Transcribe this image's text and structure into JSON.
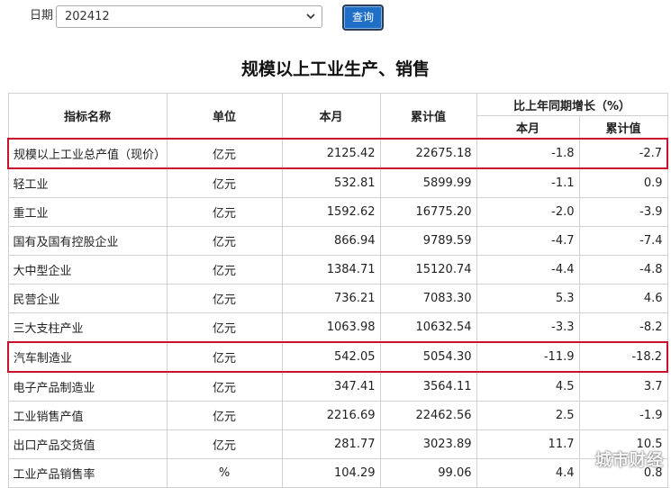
{
  "filter": {
    "date_label": "日期",
    "date_value": "202412",
    "query_button": "查询"
  },
  "title": "规模以上工业生产、销售",
  "table": {
    "headers": {
      "indicator": "指标名称",
      "unit": "单位",
      "month": "本月",
      "cumulative": "累计值",
      "yoy_group": "比上年同期增长（%）",
      "yoy_month": "本月",
      "yoy_cumulative": "累计值"
    },
    "rows": [
      {
        "name": "规模以上工业总产值（现价）",
        "unit": "亿元",
        "month": "2125.42",
        "cumulative": "22675.18",
        "yoy_month": "-1.8",
        "yoy_cumulative": "-2.7"
      },
      {
        "name": "轻工业",
        "unit": "亿元",
        "month": "532.81",
        "cumulative": "5899.99",
        "yoy_month": "-1.1",
        "yoy_cumulative": "0.9"
      },
      {
        "name": "重工业",
        "unit": "亿元",
        "month": "1592.62",
        "cumulative": "16775.20",
        "yoy_month": "-2.0",
        "yoy_cumulative": "-3.9"
      },
      {
        "name": "国有及国有控股企业",
        "unit": "亿元",
        "month": "866.94",
        "cumulative": "9789.59",
        "yoy_month": "-4.7",
        "yoy_cumulative": "-7.4"
      },
      {
        "name": "大中型企业",
        "unit": "亿元",
        "month": "1384.71",
        "cumulative": "15120.74",
        "yoy_month": "-4.4",
        "yoy_cumulative": "-4.8"
      },
      {
        "name": "民营企业",
        "unit": "亿元",
        "month": "736.21",
        "cumulative": "7083.30",
        "yoy_month": "5.3",
        "yoy_cumulative": "4.6"
      },
      {
        "name": "三大支柱产业",
        "unit": "亿元",
        "month": "1063.98",
        "cumulative": "10632.54",
        "yoy_month": "-3.3",
        "yoy_cumulative": "-8.2"
      },
      {
        "name": "汽车制造业",
        "unit": "亿元",
        "month": "542.05",
        "cumulative": "5054.30",
        "yoy_month": "-11.9",
        "yoy_cumulative": "-18.2"
      },
      {
        "name": "电子产品制造业",
        "unit": "亿元",
        "month": "347.41",
        "cumulative": "3564.11",
        "yoy_month": "4.5",
        "yoy_cumulative": "3.7"
      },
      {
        "name": "工业销售产值",
        "unit": "亿元",
        "month": "2216.69",
        "cumulative": "22462.56",
        "yoy_month": "2.5",
        "yoy_cumulative": "-1.9"
      },
      {
        "name": "出口产品交货值",
        "unit": "亿元",
        "month": "281.77",
        "cumulative": "3023.89",
        "yoy_month": "11.7",
        "yoy_cumulative": "10.5"
      },
      {
        "name": "工业产品销售率",
        "unit": "%",
        "month": "104.29",
        "cumulative": "99.06",
        "yoy_month": "4.4",
        "yoy_cumulative": "0.8"
      }
    ]
  },
  "watermark": "城市财经",
  "colors": {
    "highlight_border": "#c9102c",
    "query_button": "#1f6fc7"
  }
}
